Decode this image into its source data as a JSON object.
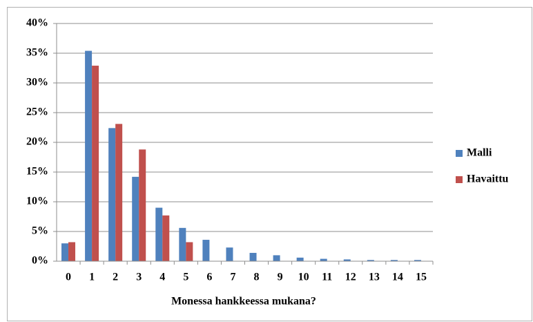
{
  "chart_data": {
    "type": "bar",
    "categories": [
      "0",
      "1",
      "2",
      "3",
      "4",
      "5",
      "6",
      "7",
      "8",
      "9",
      "10",
      "11",
      "12",
      "13",
      "14",
      "15"
    ],
    "x_label": "Monessa hankkeessa mukana?",
    "series": [
      {
        "name": "Malli",
        "color": "#4f81bd",
        "values": [
          3.0,
          35.4,
          22.4,
          14.2,
          9.0,
          5.6,
          3.6,
          2.3,
          1.4,
          1.0,
          0.6,
          0.4,
          0.3,
          0.2,
          0.2,
          0.2
        ]
      },
      {
        "name": "Havaittu",
        "color": "#c0504d",
        "values": [
          3.2,
          32.9,
          23.1,
          18.8,
          7.7,
          3.2,
          null,
          null,
          null,
          null,
          null,
          null,
          null,
          null,
          null,
          null
        ]
      }
    ],
    "ylim": [
      0,
      40
    ],
    "yticks": [
      {
        "value": 0,
        "label": "0%"
      },
      {
        "value": 5,
        "label": "5%"
      },
      {
        "value": 10,
        "label": "10%"
      },
      {
        "value": 15,
        "label": "15%"
      },
      {
        "value": 20,
        "label": "20%"
      },
      {
        "value": 25,
        "label": "25%"
      },
      {
        "value": 30,
        "label": "30%"
      },
      {
        "value": 35,
        "label": "35%"
      },
      {
        "value": 40,
        "label": "40%"
      }
    ],
    "grid": true,
    "legend": "right"
  }
}
